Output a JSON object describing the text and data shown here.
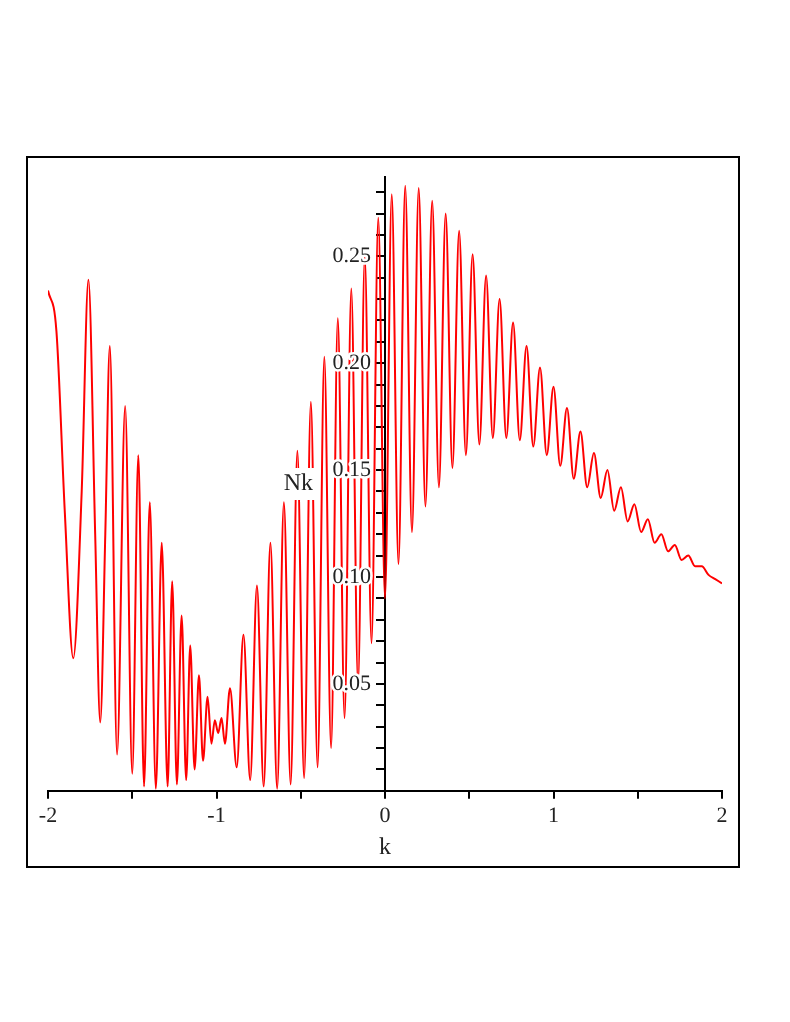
{
  "chart_data": {
    "type": "line",
    "xlabel": "k",
    "ylabel": "Nk",
    "legend": false,
    "grid": false,
    "marker": "none",
    "line_style": "solid",
    "xlim": [
      -2,
      2
    ],
    "ylim": [
      0,
      0.287
    ],
    "xticks": [
      -2,
      {
        "value": -1.5,
        "label": null
      },
      -1,
      {
        "value": -0.5,
        "label": null
      },
      0,
      {
        "value": 0.5,
        "label": null
      },
      1,
      {
        "value": 1.5,
        "label": null
      },
      2
    ],
    "yticks": [
      {
        "value": 0.01,
        "label": null
      },
      {
        "value": 0.02,
        "label": null
      },
      {
        "value": 0.03,
        "label": null
      },
      {
        "value": 0.04,
        "label": null
      },
      {
        "value": 0.05,
        "label": "0.05"
      },
      {
        "value": 0.06,
        "label": null
      },
      {
        "value": 0.07,
        "label": null
      },
      {
        "value": 0.08,
        "label": null
      },
      {
        "value": 0.09,
        "label": null
      },
      {
        "value": 0.1,
        "label": "0.10"
      },
      {
        "value": 0.11,
        "label": null
      },
      {
        "value": 0.12,
        "label": null
      },
      {
        "value": 0.13,
        "label": null
      },
      {
        "value": 0.14,
        "label": null
      },
      {
        "value": 0.15,
        "label": "0.15"
      },
      {
        "value": 0.16,
        "label": null
      },
      {
        "value": 0.17,
        "label": null
      },
      {
        "value": 0.18,
        "label": null
      },
      {
        "value": 0.19,
        "label": null
      },
      {
        "value": 0.2,
        "label": "0.20"
      },
      {
        "value": 0.21,
        "label": null
      },
      {
        "value": 0.22,
        "label": null
      },
      {
        "value": 0.23,
        "label": null
      },
      {
        "value": 0.24,
        "label": null
      },
      {
        "value": 0.25,
        "label": "0.25"
      },
      {
        "value": 0.26,
        "label": null
      },
      {
        "value": 0.27,
        "label": null
      },
      {
        "value": 0.28,
        "label": null
      }
    ],
    "series": [
      {
        "color": "#ff0000",
        "x": [
          -2,
          -1.95,
          -1.9,
          -1.85,
          -1.8,
          -1.76,
          -1.72,
          -1.69,
          -1.66,
          -1.633,
          -1.59,
          -1.542,
          -1.5,
          -1.464,
          -1.43,
          -1.396,
          -1.36,
          -1.325,
          -1.29,
          -1.263,
          -1.235,
          -1.207,
          -1.18,
          -1.156,
          -1.13,
          -1.104,
          -1.08,
          -1.053,
          -1.03,
          -1.01,
          -0.99,
          -0.97,
          -0.95,
          -0.92,
          -0.88,
          -0.84,
          -0.8,
          -0.76,
          -0.72,
          -0.68,
          -0.64,
          -0.6,
          -0.56,
          -0.52,
          -0.48,
          -0.44,
          -0.4,
          -0.36,
          -0.32,
          -0.28,
          -0.24,
          -0.2,
          -0.16,
          -0.12,
          -0.08,
          -0.04,
          0,
          0.04,
          0.08,
          0.12,
          0.16,
          0.2,
          0.24,
          0.28,
          0.32,
          0.36,
          0.4,
          0.44,
          0.48,
          0.52,
          0.56,
          0.6,
          0.64,
          0.68,
          0.72,
          0.76,
          0.8,
          0.84,
          0.88,
          0.92,
          0.96,
          1,
          1.04,
          1.08,
          1.12,
          1.16,
          1.2,
          1.24,
          1.28,
          1.32,
          1.36,
          1.4,
          1.44,
          1.48,
          1.52,
          1.56,
          1.6,
          1.64,
          1.68,
          1.72,
          1.76,
          1.8,
          1.84,
          1.88,
          1.92,
          1.96,
          2
        ],
        "values": [
          0.234,
          0.215,
          0.13,
          0.062,
          0.14,
          0.239,
          0.12,
          0.032,
          0.12,
          0.208,
          0.017,
          0.18,
          0.008,
          0.157,
          0.002,
          0.135,
          0.001,
          0.116,
          0.002,
          0.098,
          0.003,
          0.082,
          0.005,
          0.068,
          0.01,
          0.054,
          0.014,
          0.044,
          0.022,
          0.033,
          0.027,
          0.034,
          0.022,
          0.048,
          0.011,
          0.073,
          0.005,
          0.096,
          0.002,
          0.116,
          0.001,
          0.135,
          0.003,
          0.159,
          0.006,
          0.182,
          0.011,
          0.203,
          0.02,
          0.221,
          0.034,
          0.235,
          0.05,
          0.25,
          0.069,
          0.268,
          0.09,
          0.279,
          0.106,
          0.283,
          0.121,
          0.282,
          0.133,
          0.276,
          0.142,
          0.27,
          0.151,
          0.262,
          0.157,
          0.251,
          0.162,
          0.241,
          0.165,
          0.23,
          0.165,
          0.219,
          0.164,
          0.208,
          0.161,
          0.198,
          0.157,
          0.189,
          0.152,
          0.179,
          0.146,
          0.168,
          0.142,
          0.158,
          0.137,
          0.15,
          0.131,
          0.142,
          0.126,
          0.134,
          0.121,
          0.127,
          0.116,
          0.12,
          0.112,
          0.115,
          0.108,
          0.11,
          0.105,
          0.105,
          0.101,
          0.099,
          0.097
        ]
      }
    ]
  }
}
